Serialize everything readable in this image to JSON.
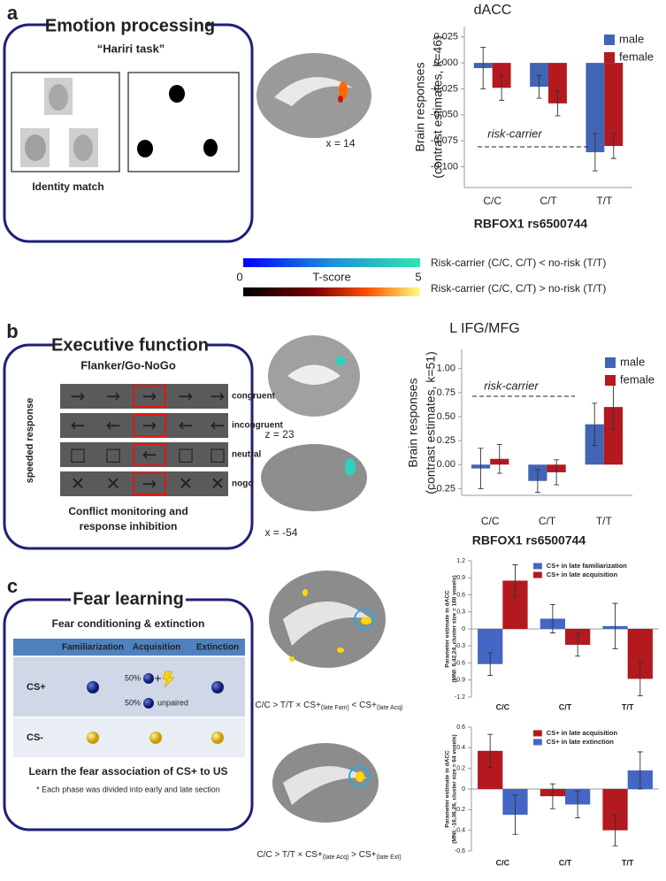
{
  "panels": {
    "a": {
      "letter": "a",
      "title": "Emotion processing",
      "task": "“Hariri task”",
      "caption": "Identity match",
      "slice": "x = 14"
    },
    "colorbar": {
      "label": "T-score",
      "min": 0,
      "max": 5,
      "negative": "Risk-carrier (C/C, C/T) < no-risk (T/T)",
      "positive": "Risk-carrier (C/C, C/T) > no-risk (T/T)"
    },
    "b": {
      "letter": "b",
      "title": "Executive function",
      "task": "Flanker/Go-NoGo",
      "axis": "speeded response",
      "rows": [
        {
          "label": "congruent",
          "stimuli": [
            "→",
            "→",
            "→",
            "→",
            "→"
          ]
        },
        {
          "label": "incongruent",
          "stimuli": [
            "←",
            "←",
            "→",
            "←",
            "←"
          ]
        },
        {
          "label": "neutral",
          "stimuli": [
            "□",
            "□",
            "←",
            "□",
            "□"
          ]
        },
        {
          "label": "nogo",
          "stimuli": [
            "✕",
            "✕",
            "→",
            "✕",
            "✕"
          ]
        }
      ],
      "caption": [
        "Conflict monitoring and",
        "response inhibition"
      ],
      "slices": [
        "z = 23",
        "x = -54"
      ]
    },
    "c": {
      "letter": "c",
      "title": "Fear learning",
      "task": "Fear conditioning & extinction",
      "table": {
        "header": [
          "Familiarization",
          "Acquisition",
          "Extinction"
        ],
        "rows": [
          "CS+",
          "CS-"
        ],
        "acquisition": [
          "50%",
          "50%",
          "unpaired"
        ]
      },
      "summary": "Learn the fear association of CS+ to US",
      "note": "* Each phase was divided into early and late section",
      "brain_captions": [
        [
          "C/C > T/T × CS+",
          "(late Fam)",
          " < CS+",
          "(late Acq)"
        ],
        [
          "C/C > T/T × CS+",
          "(late Acq)",
          " > CS+",
          "(late Ext)"
        ]
      ]
    }
  },
  "chart_data": [
    {
      "type": "bar",
      "title": "dACC",
      "xlabel": "RBFOX1 rs6500744",
      "ylabel": [
        "Brain responses",
        "(contrast estimates, k=46)"
      ],
      "annotation": "risk-carrier",
      "legend": "upper right",
      "categories": [
        "C/C",
        "C/T",
        "T/T"
      ],
      "series": [
        {
          "name": "male",
          "color": "#4264b5",
          "values": [
            -0.005,
            -0.023,
            -0.086
          ],
          "errors": [
            0.02,
            0.011,
            0.018
          ]
        },
        {
          "name": "female",
          "color": "#b3191f",
          "values": [
            -0.024,
            -0.039,
            -0.08
          ],
          "errors": [
            0.012,
            0.012,
            0.012
          ]
        }
      ],
      "ylim": [
        -0.12,
        0.035
      ],
      "yticks": [
        0.025,
        {
          "value": 0,
          "label": "0.000"
        },
        -0.025,
        {
          "value": -0.05,
          "label": "-0.050"
        },
        -0.075,
        {
          "value": -0.1,
          "label": "-0.100"
        }
      ]
    },
    {
      "type": "bar",
      "title": "L IFG/MFG",
      "xlabel": "RBFOX1 rs6500744",
      "ylabel": [
        "Brain responses",
        "(contrast estimates, k=51)"
      ],
      "annotation": "risk-carrier",
      "legend": "upper right",
      "categories": [
        "C/C",
        "C/T",
        "T/T"
      ],
      "series": [
        {
          "name": "male",
          "color": "#4264b5",
          "values": [
            -0.04,
            -0.17,
            0.42
          ],
          "errors": [
            0.21,
            0.12,
            0.22
          ]
        },
        {
          "name": "female",
          "color": "#b3191f",
          "values": [
            0.06,
            -0.08,
            0.6
          ],
          "errors": [
            0.15,
            0.13,
            0.23
          ]
        }
      ],
      "ylim": [
        -0.32,
        1.2
      ],
      "yticks": [
        {
          "value": 1,
          "label": "1.00"
        },
        0.75,
        {
          "value": 0.5,
          "label": "0.50"
        },
        0.25,
        {
          "value": 0,
          "label": "0.00"
        },
        -0.25
      ]
    },
    {
      "type": "bar",
      "ylabel": [
        "Parameter estimate in dACC",
        "(MNI: 6,42,24, cluster size = 160 voxels)"
      ],
      "legend": "upper center",
      "categories": [
        "C/C",
        "C/T",
        "T/T"
      ],
      "series": [
        {
          "name": "CS+ in late familiarization",
          "color": "#4466c4",
          "values": [
            -0.62,
            0.18,
            0.05
          ],
          "errors": [
            0.2,
            0.25,
            0.4
          ]
        },
        {
          "name": "CS+ in late acquisition",
          "color": "#b3191f",
          "values": [
            0.85,
            -0.28,
            -0.88
          ],
          "errors": [
            0.28,
            0.2,
            0.3
          ]
        }
      ],
      "ylim": [
        -1.2,
        1.2
      ],
      "yticks": [
        1.2,
        0.9,
        0.6,
        0.3,
        0,
        -0.3,
        -0.6,
        -0.9,
        -1.2
      ]
    },
    {
      "type": "bar",
      "ylabel": [
        "Parameter estimate in dACC",
        "(MNI: -16,36,26, cluster size = 64 voxels)"
      ],
      "legend": "upper center",
      "categories": [
        "C/C",
        "C/T",
        "T/T"
      ],
      "series": [
        {
          "name": "CS+ in late acquisition",
          "color": "#b3191f",
          "values": [
            0.37,
            -0.07,
            -0.4
          ],
          "errors": [
            0.16,
            0.12,
            0.15
          ]
        },
        {
          "name": "CS+ in late extinction",
          "color": "#4466c4",
          "values": [
            -0.25,
            -0.15,
            0.18
          ],
          "errors": [
            0.19,
            0.13,
            0.18
          ]
        }
      ],
      "ylim": [
        -0.6,
        0.6
      ],
      "yticks": [
        0.6,
        0.4,
        0.2,
        0,
        -0.2,
        -0.4,
        -0.6
      ]
    }
  ]
}
